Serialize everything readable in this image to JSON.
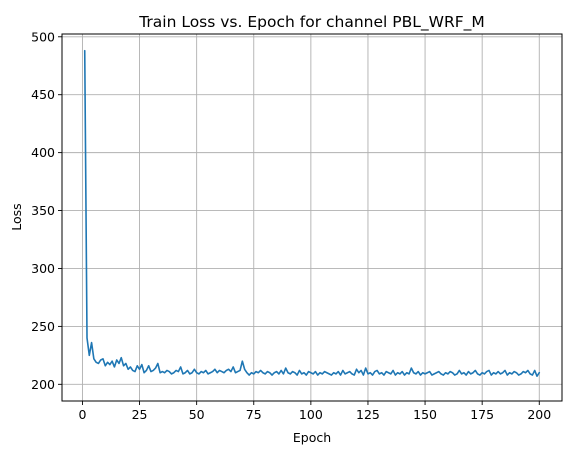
{
  "chart_data": {
    "type": "line",
    "title": "Train Loss vs. Epoch for channel PBL_WRF_M",
    "xlabel": "Epoch",
    "ylabel": "Loss",
    "xlim": [
      -8.95,
      209.95
    ],
    "ylim": [
      185.6,
      502.4
    ],
    "xticks": [
      0,
      25,
      50,
      75,
      100,
      125,
      150,
      175,
      200
    ],
    "yticks": [
      200,
      250,
      300,
      350,
      400,
      450,
      500
    ],
    "grid": true,
    "series_color": "#1f77b4",
    "series": [
      {
        "x": [
          1,
          2,
          3,
          4,
          5,
          6,
          7,
          8,
          9,
          10,
          11,
          12,
          13,
          14,
          15,
          16,
          17,
          18,
          19,
          20,
          21,
          22,
          23,
          24,
          25,
          26,
          27,
          28,
          29,
          30,
          31,
          32,
          33,
          34,
          35,
          36,
          37,
          38,
          39,
          40,
          41,
          42,
          43,
          44,
          45,
          46,
          47,
          48,
          49,
          50,
          51,
          52,
          53,
          54,
          55,
          56,
          57,
          58,
          59,
          60,
          61,
          62,
          63,
          64,
          65,
          66,
          67,
          68,
          69,
          70,
          71,
          72,
          73,
          74,
          75,
          76,
          77,
          78,
          79,
          80,
          81,
          82,
          83,
          84,
          85,
          86,
          87,
          88,
          89,
          90,
          91,
          92,
          93,
          94,
          95,
          96,
          97,
          98,
          99,
          100,
          101,
          102,
          103,
          104,
          105,
          106,
          107,
          108,
          109,
          110,
          111,
          112,
          113,
          114,
          115,
          116,
          117,
          118,
          119,
          120,
          121,
          122,
          123,
          124,
          125,
          126,
          127,
          128,
          129,
          130,
          131,
          132,
          133,
          134,
          135,
          136,
          137,
          138,
          139,
          140,
          141,
          142,
          143,
          144,
          145,
          146,
          147,
          148,
          149,
          150,
          151,
          152,
          153,
          154,
          155,
          156,
          157,
          158,
          159,
          160,
          161,
          162,
          163,
          164,
          165,
          166,
          167,
          168,
          169,
          170,
          171,
          172,
          173,
          174,
          175,
          176,
          177,
          178,
          179,
          180,
          181,
          182,
          183,
          184,
          185,
          186,
          187,
          188,
          189,
          190,
          191,
          192,
          193,
          194,
          195,
          196,
          197,
          198,
          199,
          200
        ],
        "y": [
          488,
          240,
          225,
          236,
          222,
          219,
          218,
          221,
          222,
          216,
          219,
          217,
          220,
          215,
          221,
          218,
          223,
          216,
          218,
          213,
          215,
          212,
          211,
          216,
          213,
          217,
          210,
          212,
          216,
          211,
          212,
          214,
          218,
          210,
          211,
          210,
          212,
          211,
          209,
          210,
          212,
          211,
          215,
          209,
          210,
          212,
          209,
          210,
          213,
          210,
          209,
          211,
          210,
          212,
          209,
          210,
          211,
          213,
          210,
          212,
          211,
          210,
          212,
          213,
          211,
          215,
          210,
          211,
          212,
          220,
          213,
          210,
          208,
          210,
          209,
          211,
          210,
          212,
          210,
          209,
          211,
          210,
          208,
          210,
          211,
          209,
          212,
          209,
          214,
          210,
          209,
          211,
          210,
          208,
          212,
          209,
          210,
          208,
          211,
          210,
          209,
          211,
          208,
          210,
          209,
          211,
          210,
          209,
          208,
          210,
          209,
          211,
          208,
          212,
          209,
          210,
          211,
          209,
          208,
          213,
          210,
          212,
          208,
          214,
          209,
          210,
          208,
          211,
          212,
          209,
          210,
          208,
          211,
          210,
          209,
          212,
          208,
          210,
          209,
          211,
          208,
          210,
          209,
          214,
          210,
          209,
          211,
          208,
          210,
          209,
          210,
          211,
          208,
          209,
          210,
          211,
          209,
          208,
          210,
          209,
          211,
          210,
          208,
          209,
          212,
          209,
          210,
          208,
          211,
          209,
          210,
          212,
          209,
          208,
          210,
          209,
          211,
          212,
          208,
          210,
          209,
          211,
          209,
          210,
          212,
          208,
          210,
          209,
          211,
          210,
          208,
          209,
          211,
          210,
          212,
          209,
          208,
          212,
          207,
          210
        ]
      }
    ]
  }
}
